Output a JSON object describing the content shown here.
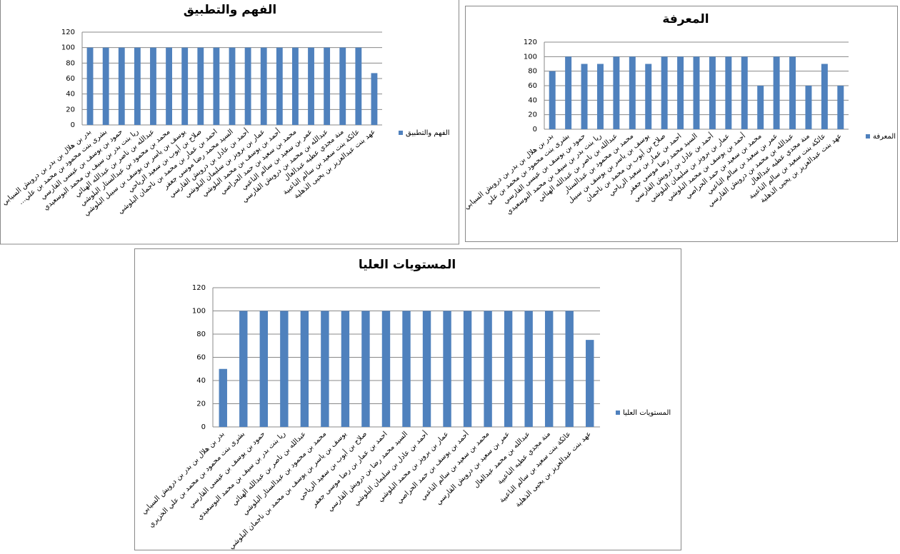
{
  "chart_data": [
    {
      "type": "bar",
      "title": "الفهم والتطبيق",
      "categories": [
        "بدر بن هلال بن بدر بن درويش السيابي",
        "...بشرى بنت محمود بن محمد بن علي",
        "حمود بن يوسف بن عيسى القارسي",
        "ريا بنت بدر بن سيف بن محمد البوسعيدي",
        "عبدالله بن ناصر بن عبدالله الهنائي",
        "محمد بن محمود بن عبدالستار البلوشي",
        "يوسف بن ياسر بن يوسف بن سيبل البلوشي",
        "صلاح بن أيوب بن سعيد الرياحي",
        "احمد بن عمار بن محمد بن ناجمان البلوشي",
        "السيد محمد رضا موسى جعفر",
        "أحمد بن عادل بن درويش القارسي",
        "عمار بن برويز بن سليمان البلوشي",
        "أحمد بن يوسف بن محمد البلوشي",
        "محمد بن سعيد بن حمد الحراصي",
        "عمر بن سعيد بن سالم الناعبي",
        "عبدالله بن محمد بن درويش القارسي",
        "منة مجدي عطيه عبدالعال",
        "عائكة بنت سعيد بن سالم الناعبية",
        "عهد بنت عبدالعزيز بن يحيى الذهلية"
      ],
      "series": [
        {
          "name": "الفهم والتطبيق",
          "color": "#4f81bd",
          "values": [
            100,
            100,
            100,
            100,
            100,
            100,
            100,
            100,
            100,
            100,
            100,
            100,
            100,
            100,
            100,
            100,
            100,
            100,
            67
          ]
        }
      ],
      "ylim": [
        0,
        120
      ],
      "yticks": [
        0,
        20,
        40,
        60,
        80,
        100,
        120
      ],
      "grid": true,
      "legend": "right"
    },
    {
      "type": "bar",
      "title": "المعرفة",
      "categories": [
        "بدر بن هلال بن بدر بن درويش السيابي",
        "بشرى بنت محمود بن محمد بن علي",
        "حمود بن يوسف بن عيسى القارسي",
        "ريا بنت بدر بن سيف بن محمد البوسعيدي",
        "عبدالله بن ناصر بن عبدالله الهنائي",
        "محمد بن محمود بن عبدالستار",
        "يوسف بن ياسر بن يوسف بن سيبل",
        "صلاح بن أيوب بن محمد بن ناجمان",
        "احمد بن عمار بن سعيد الرياحي",
        "السيد محمد رضا موسى جعفر",
        "أحمد بن عادل بن درويش القارسي",
        "عمار بن برويز بن سليمان البلوشي",
        "أحمد بن يوسف بن محمد البلوشي",
        "محمد بن سعيد بن حمد الحراصي",
        "عمر بن سعيد بن سالم الناعبي",
        "عبدالله بن محمد بن درويش القارسي",
        "منة مجدي عطيه عبدالعال",
        "عائكة بنت سعيد بن سالم الناعبية",
        "عهد بنت عبدالعزيز بن يحيى الذهلية"
      ],
      "series": [
        {
          "name": "المعرفة",
          "color": "#4f81bd",
          "values": [
            80,
            100,
            90,
            90,
            100,
            100,
            90,
            100,
            100,
            100,
            100,
            100,
            100,
            60,
            100,
            100,
            60,
            90,
            60
          ]
        }
      ],
      "ylim": [
        0,
        120
      ],
      "yticks": [
        0,
        20,
        40,
        60,
        80,
        100,
        120
      ],
      "grid": true,
      "legend": "right"
    },
    {
      "type": "bar",
      "title": "المستويات العليا",
      "categories": [
        "بدر بن هلال بن بدر بن درويش السيابي",
        "بشرى بنت محمود بن محمد بن علي الخزيري",
        "حمود بن يوسف بن عيسى القارسي",
        "ريا بنت بدر بن سيف بن محمد البوسعيدي",
        "عبدالله بن ناصر بن عبدالله الهنائي",
        "محمد بن محمود بن عبدالستار البلوشي",
        "يوسف بن ياسر بن يوسف بن محمد بن ناجمان البلوشي",
        "صلاح بن أيوب بن سعيد الرياحي",
        "احمد بن عمار بن رضا موسى جعفر",
        "السيد محمد رضا بن درويش القارسي",
        "أحمد بن عادل بن سليمان البلوشي",
        "عمار بن برويز بن محمد البلوشي",
        "أحمد بن يوسف بن حمد الحراصي",
        "محمد بن سعيد بن سالم الناعبي",
        "عمر بن سعيد بن درويش القارسي",
        "عبدالله بن محمد عبدالعال",
        "منة مجدي عطيه الناعبية",
        "عائكة بنت سعيد بن سالم الناعبية",
        "عهد بنت عبدالعزيز بن يحيى الذهلية"
      ],
      "series": [
        {
          "name": "المستويات العليا",
          "color": "#4f81bd",
          "values": [
            50,
            100,
            100,
            100,
            100,
            100,
            100,
            100,
            100,
            100,
            100,
            100,
            100,
            100,
            100,
            100,
            100,
            100,
            75
          ]
        }
      ],
      "ylim": [
        0,
        120
      ],
      "yticks": [
        0,
        20,
        40,
        60,
        80,
        100,
        120
      ],
      "grid": true,
      "legend": "right"
    }
  ]
}
